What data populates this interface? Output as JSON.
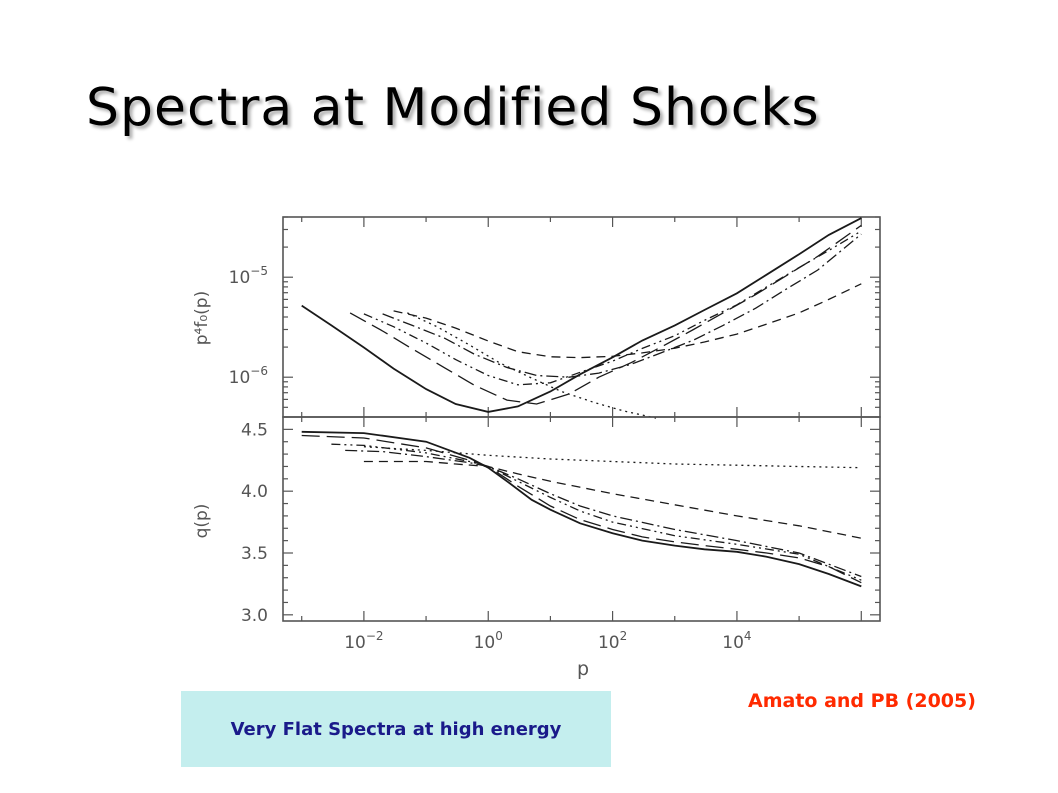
{
  "slide": {
    "title": "Spectra at Modified Shocks",
    "citation": "Amato and PB (2005)",
    "callout": "Very Flat Spectra at high energy"
  },
  "colors": {
    "citation": "#ff2a00",
    "callout_bg": "#c4eeee",
    "callout_text": "#1a1a8a",
    "axes": "#555555"
  },
  "chart_data": [
    {
      "type": "line",
      "panel": "top",
      "ylabel": "p⁴f₀(p)",
      "xlabel": "",
      "xscale": "log10",
      "yscale": "log10",
      "xlim": [
        0.0005,
        2000000
      ],
      "ylim": [
        4e-07,
        4e-05
      ],
      "xtick_labels": [],
      "ytick_labels": [
        {
          "base": "10",
          "exp": "−5",
          "value": 1e-05
        },
        {
          "base": "10",
          "exp": "−6",
          "value": 1e-06
        }
      ],
      "series": [
        {
          "dash": "solid",
          "x": [
            0.001,
            0.003,
            0.01,
            0.03,
            0.1,
            0.3,
            1,
            3,
            10,
            30,
            100,
            300,
            1000,
            3000,
            10000,
            30000,
            100000,
            300000,
            1000000
          ],
          "y": [
            5.2e-06,
            3.3e-06,
            1.98e-06,
            1.22e-06,
            7.6e-07,
            5.4e-07,
            4.5e-07,
            5.1e-07,
            7.2e-07,
            1.07e-06,
            1.58e-06,
            2.33e-06,
            3.3e-06,
            4.7e-06,
            6.9e-06,
            1.06e-05,
            1.7e-05,
            2.65e-05,
            3.9e-05
          ]
        },
        {
          "dash": "longdash",
          "x": [
            0.006,
            0.02,
            0.06,
            0.2,
            0.6,
            2,
            6,
            20,
            60,
            200,
            600,
            2000,
            6000,
            20000,
            60000,
            200000,
            1000000
          ],
          "y": [
            4.4e-06,
            2.9e-06,
            1.92e-06,
            1.24e-06,
            8.3e-07,
            5.9e-07,
            5.4e-07,
            6.8e-07,
            1e-06,
            1.4e-06,
            2e-06,
            3e-06,
            4.4e-06,
            6.7e-06,
            1.02e-05,
            1.62e-05,
            3.3e-05
          ]
        },
        {
          "dash": "dashdotdot",
          "x": [
            0.01,
            0.03,
            0.1,
            0.3,
            1,
            3,
            10,
            30,
            100,
            300,
            1000,
            3000,
            10000,
            30000,
            100000,
            300000,
            1000000
          ],
          "y": [
            4.3e-06,
            3.2e-06,
            2.2e-06,
            1.5e-06,
            1.04e-06,
            8.4e-07,
            8.8e-07,
            1.12e-06,
            1.45e-06,
            1.94e-06,
            2.6e-06,
            3.7e-06,
            5.3e-06,
            8e-06,
            1.25e-05,
            1.85e-05,
            2.9e-05
          ]
        },
        {
          "dash": "dashdot",
          "x": [
            0.02,
            0.06,
            0.2,
            0.6,
            2,
            6,
            20,
            60,
            200,
            600,
            2000,
            6000,
            20000,
            60000,
            200000,
            1000000
          ],
          "y": [
            4.3e-06,
            3.3e-06,
            2.45e-06,
            1.7e-06,
            1.25e-06,
            1.04e-06,
            1e-06,
            1.1e-06,
            1.35e-06,
            1.75e-06,
            2.35e-06,
            3.3e-06,
            4.9e-06,
            7.5e-06,
            1.18e-05,
            2.7e-05
          ]
        },
        {
          "dash": "dashed",
          "x": [
            0.03,
            0.1,
            0.3,
            1,
            3,
            10,
            30,
            100,
            300,
            1000,
            3000,
            10000,
            30000,
            100000,
            300000,
            1000000
          ],
          "y": [
            4.6e-06,
            3.9e-06,
            3.1e-06,
            2.3e-06,
            1.8e-06,
            1.6e-06,
            1.57e-06,
            1.62e-06,
            1.75e-06,
            1.95e-06,
            2.25e-06,
            2.7e-06,
            3.4e-06,
            4.4e-06,
            6e-06,
            8.6e-06
          ]
        },
        {
          "dash": "dotted",
          "x": [
            0.05,
            0.15,
            0.5,
            1.5,
            5,
            15,
            50,
            150,
            500
          ],
          "y": [
            4.4e-06,
            3.2e-06,
            2.1e-06,
            1.4e-06,
            9.8e-07,
            7.2e-07,
            5.6e-07,
            4.6e-07,
            3.9e-07
          ]
        }
      ]
    },
    {
      "type": "line",
      "panel": "bottom",
      "ylabel": "q(p)",
      "xlabel": "p",
      "xscale": "log10",
      "xlim": [
        0.0005,
        2000000
      ],
      "ylim": [
        2.95,
        4.6
      ],
      "xtick_labels": [
        {
          "base": "10",
          "exp": "−2",
          "value": 0.01
        },
        {
          "base": "10",
          "exp": "0",
          "value": 1
        },
        {
          "base": "10",
          "exp": "2",
          "value": 100
        },
        {
          "base": "10",
          "exp": "4",
          "value": 10000
        }
      ],
      "ytick_labels": [
        "4.5",
        "4.0",
        "3.5",
        "3.0"
      ],
      "ytick_values": [
        4.5,
        4.0,
        3.5,
        3.0
      ],
      "series": [
        {
          "dash": "solid",
          "x": [
            0.001,
            0.01,
            0.1,
            0.5,
            1,
            2,
            5,
            10,
            30,
            100,
            300,
            1000,
            3000,
            10000,
            30000,
            100000,
            300000,
            1000000
          ],
          "y": [
            4.48,
            4.47,
            4.4,
            4.27,
            4.19,
            4.08,
            3.93,
            3.85,
            3.74,
            3.66,
            3.6,
            3.56,
            3.53,
            3.51,
            3.47,
            3.41,
            3.33,
            3.23
          ]
        },
        {
          "dash": "longdash",
          "x": [
            0.001,
            0.01,
            0.1,
            0.5,
            1,
            3,
            10,
            30,
            100,
            300,
            1000,
            3000,
            10000,
            30000,
            100000,
            300000,
            1000000
          ],
          "y": [
            4.45,
            4.43,
            4.35,
            4.25,
            4.2,
            4.04,
            3.88,
            3.77,
            3.69,
            3.63,
            3.59,
            3.56,
            3.53,
            3.5,
            3.46,
            3.39,
            3.26
          ]
        },
        {
          "dash": "dashdotdot",
          "x": [
            0.003,
            0.01,
            0.1,
            0.5,
            1,
            3,
            10,
            30,
            100,
            1000,
            10000,
            100000,
            1000000
          ],
          "y": [
            4.38,
            4.37,
            4.31,
            4.24,
            4.2,
            4.08,
            3.95,
            3.84,
            3.75,
            3.64,
            3.57,
            3.49,
            3.28
          ]
        },
        {
          "dash": "dashdot",
          "x": [
            0.005,
            0.02,
            0.1,
            0.5,
            1,
            3,
            10,
            30,
            100,
            1000,
            10000,
            100000,
            1000000
          ],
          "y": [
            4.33,
            4.32,
            4.28,
            4.23,
            4.2,
            4.1,
            3.98,
            3.88,
            3.8,
            3.69,
            3.6,
            3.5,
            3.31
          ]
        },
        {
          "dash": "dashed",
          "x": [
            0.01,
            0.03,
            0.1,
            0.3,
            1,
            3,
            10,
            100,
            1000,
            10000,
            100000,
            1000000
          ],
          "y": [
            4.24,
            4.24,
            4.24,
            4.22,
            4.2,
            4.14,
            4.08,
            3.98,
            3.89,
            3.8,
            3.72,
            3.62
          ]
        },
        {
          "dash": "dotted",
          "x": [
            0.01,
            0.1,
            1,
            10,
            100,
            1000,
            10000,
            100000,
            1000000
          ],
          "y": [
            4.36,
            4.33,
            4.29,
            4.26,
            4.24,
            4.22,
            4.21,
            4.2,
            4.19
          ]
        }
      ]
    }
  ]
}
